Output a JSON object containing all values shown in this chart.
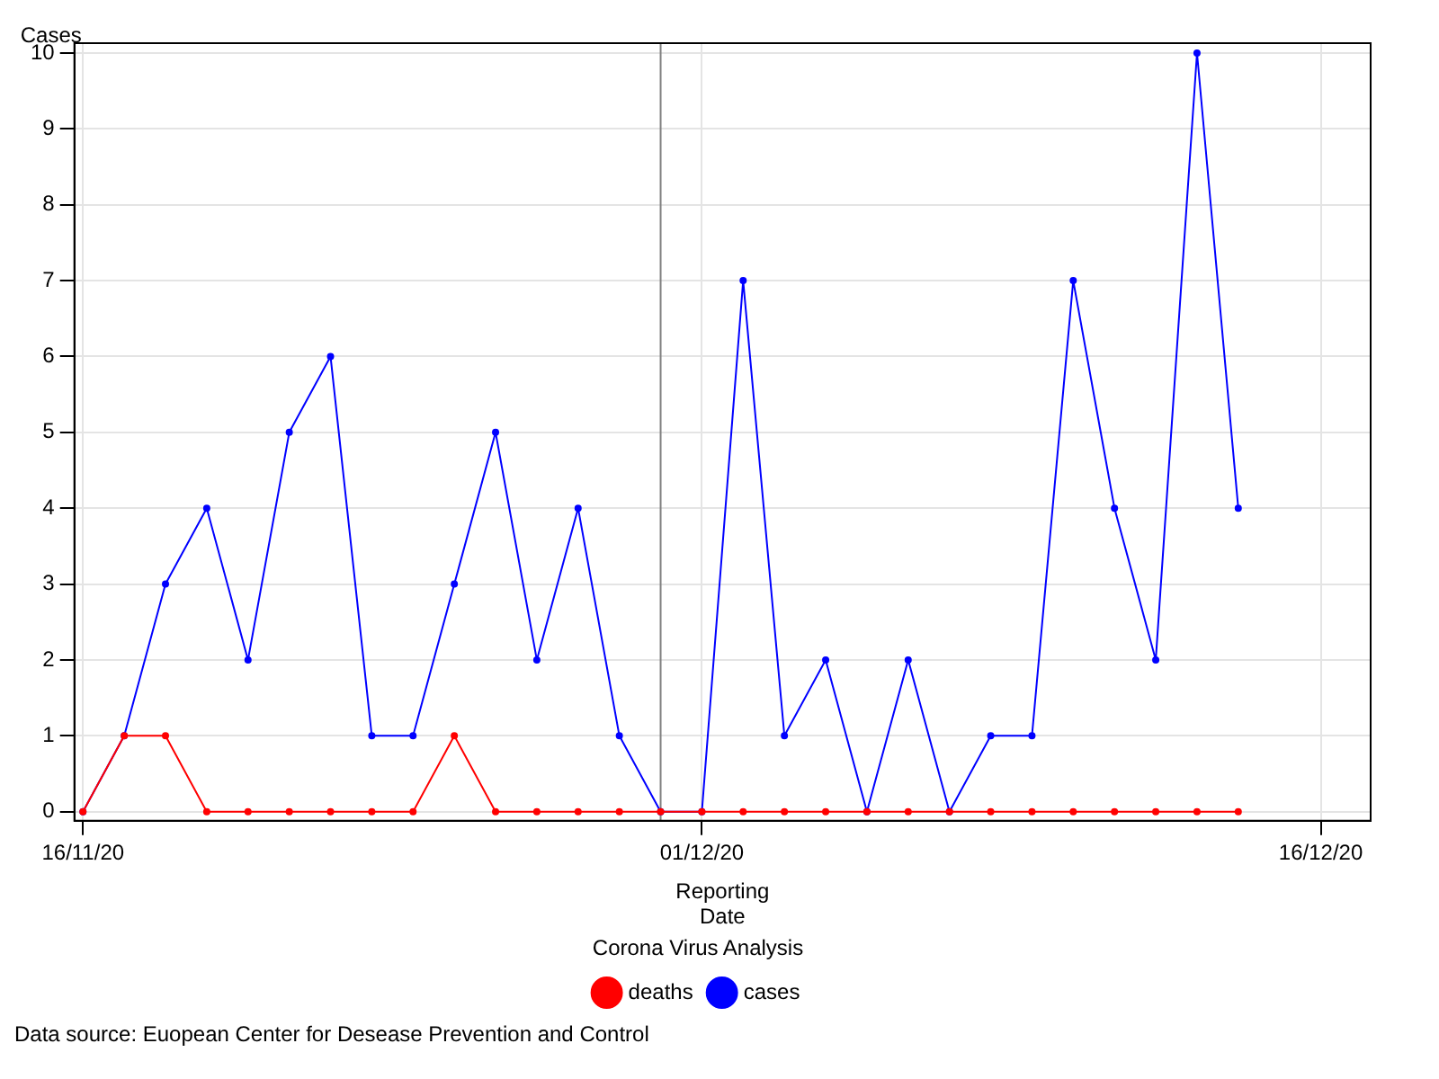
{
  "chart_data": {
    "type": "line",
    "ylabel": "Cases",
    "xlabel": "Reporting\nDate",
    "legend_title": "Corona Virus Analysis",
    "x": [
      "2020-11-16",
      "2020-11-17",
      "2020-11-18",
      "2020-11-19",
      "2020-11-20",
      "2020-11-21",
      "2020-11-22",
      "2020-11-23",
      "2020-11-24",
      "2020-11-25",
      "2020-11-26",
      "2020-11-27",
      "2020-11-28",
      "2020-11-29",
      "2020-11-30",
      "2020-12-01",
      "2020-12-02",
      "2020-12-03",
      "2020-12-04",
      "2020-12-05",
      "2020-12-06",
      "2020-12-07",
      "2020-12-08",
      "2020-12-09",
      "2020-12-10",
      "2020-12-11",
      "2020-12-12",
      "2020-12-13",
      "2020-12-14"
    ],
    "series": [
      {
        "name": "cases",
        "color": "#0000ff",
        "values": [
          0,
          1,
          3,
          4,
          2,
          5,
          6,
          1,
          1,
          3,
          5,
          2,
          4,
          1,
          0,
          0,
          7,
          1,
          2,
          0,
          2,
          0,
          1,
          1,
          7,
          4,
          2,
          10,
          4
        ]
      },
      {
        "name": "deaths",
        "color": "#ff0000",
        "values": [
          0,
          1,
          1,
          0,
          0,
          0,
          0,
          0,
          0,
          1,
          0,
          0,
          0,
          0,
          0,
          0,
          0,
          0,
          0,
          0,
          0,
          0,
          0,
          0,
          0,
          0,
          0,
          0,
          0
        ]
      }
    ],
    "xlim": [
      "2020-11-15T19:00",
      "2020-12-17T05:00"
    ],
    "xticks": [
      {
        "value": "2020-11-16",
        "label": "16/11/20"
      },
      {
        "value": "2020-12-01",
        "label": "01/12/20"
      },
      {
        "value": "2020-12-16",
        "label": "16/12/20"
      }
    ],
    "ylim": [
      -0.12,
      10.13
    ],
    "yticks": [
      0,
      1,
      2,
      3,
      4,
      5,
      6,
      7,
      8,
      9,
      10
    ],
    "ref_lines": [
      {
        "axis": "x",
        "value": "2020-11-30",
        "color": "#808080"
      }
    ],
    "grid": true,
    "legend": "bottom",
    "marker": "circle",
    "line_style": "solid",
    "annotations": [
      "Data source: Euopean Center for Desease Prevention and Control"
    ]
  }
}
